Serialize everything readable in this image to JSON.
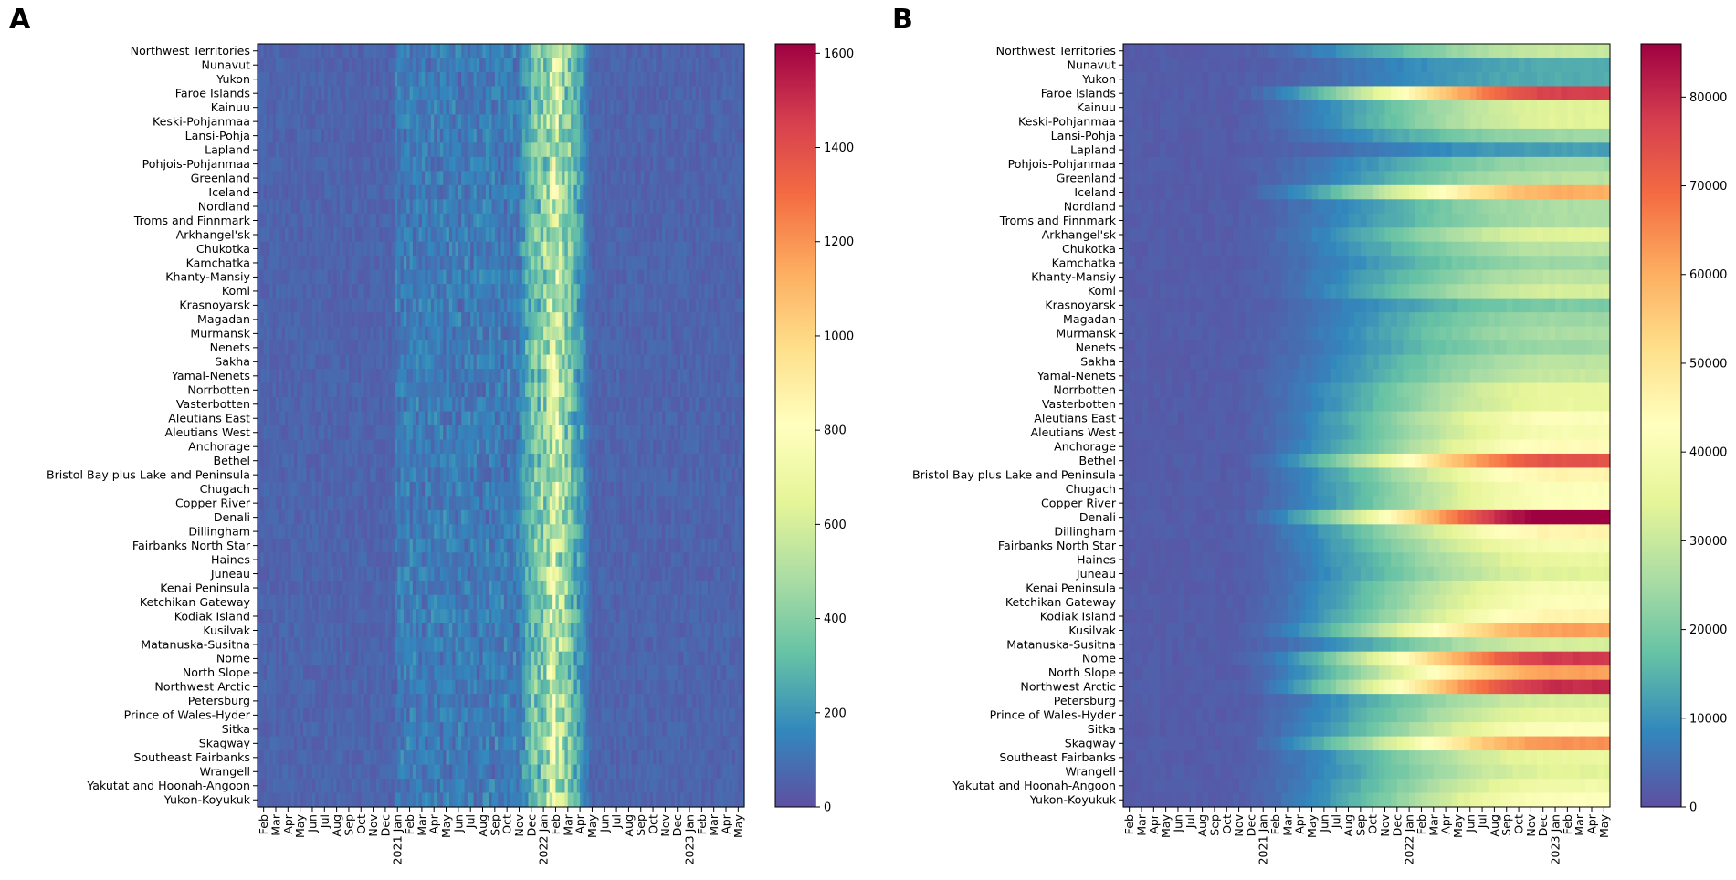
{
  "chart_data": [
    {
      "type": "heatmap",
      "panel_label": "A",
      "title": "",
      "xlabel": "",
      "ylabel": "",
      "rows": [
        "Northwest Territories",
        "Nunavut",
        "Yukon",
        "Faroe Islands",
        "Kainuu",
        "Keski-Pohjanmaa",
        "Lansi-Pohja",
        "Lapland",
        "Pohjois-Pohjanmaa",
        "Greenland",
        "Iceland",
        "Nordland",
        "Troms and Finnmark",
        "Arkhangel'sk",
        "Chukotka",
        "Kamchatka",
        "Khanty-Mansiy",
        "Komi",
        "Krasnoyarsk",
        "Magadan",
        "Murmansk",
        "Nenets",
        "Sakha",
        "Yamal-Nenets",
        "Norrbotten",
        "Vasterbotten",
        "Aleutians East",
        "Aleutians West",
        "Anchorage",
        "Bethel",
        "Bristol Bay plus Lake and Peninsula",
        "Chugach",
        "Copper River",
        "Denali",
        "Dillingham",
        "Fairbanks North Star",
        "Haines",
        "Juneau",
        "Kenai Peninsula",
        "Ketchikan Gateway",
        "Kodiak Island",
        "Kusilvak",
        "Matanuska-Susitna",
        "Nome",
        "North Slope",
        "Northwest Arctic",
        "Petersburg",
        "Prince of Wales-Hyder",
        "Sitka",
        "Skagway",
        "Southeast Fairbanks",
        "Wrangell",
        "Yakutat and Hoonah-Angoon",
        "Yukon-Koyukuk"
      ],
      "x_tick_labels": [
        "Feb",
        "Mar",
        "Apr",
        "May",
        "Jun",
        "Jul",
        "Aug",
        "Sep",
        "Oct",
        "Nov",
        "Dec",
        "2021 Jan",
        "Feb",
        "Mar",
        "Apr",
        "May",
        "Jun",
        "Jul",
        "Aug",
        "Sep",
        "Oct",
        "Nov",
        "Dec",
        "2022 Jan",
        "Feb",
        "Mar",
        "Apr",
        "May",
        "Jun",
        "Jul",
        "Aug",
        "Sep",
        "Oct",
        "Nov",
        "Dec",
        "2023 Jan",
        "Feb",
        "Mar",
        "Apr",
        "May"
      ],
      "colorbar": {
        "min": 0,
        "max": 1620,
        "ticks": [
          0,
          200,
          400,
          600,
          800,
          1000,
          1200,
          1400,
          1600
        ]
      },
      "profile": "daily",
      "peak_month_index": 24
    },
    {
      "type": "heatmap",
      "panel_label": "B",
      "title": "",
      "xlabel": "",
      "ylabel": "",
      "rows": [
        "Northwest Territories",
        "Nunavut",
        "Yukon",
        "Faroe Islands",
        "Kainuu",
        "Keski-Pohjanmaa",
        "Lansi-Pohja",
        "Lapland",
        "Pohjois-Pohjanmaa",
        "Greenland",
        "Iceland",
        "Nordland",
        "Troms and Finnmark",
        "Arkhangel'sk",
        "Chukotka",
        "Kamchatka",
        "Khanty-Mansiy",
        "Komi",
        "Krasnoyarsk",
        "Magadan",
        "Murmansk",
        "Nenets",
        "Sakha",
        "Yamal-Nenets",
        "Norrbotten",
        "Vasterbotten",
        "Aleutians East",
        "Aleutians West",
        "Anchorage",
        "Bethel",
        "Bristol Bay plus Lake and Peninsula",
        "Chugach",
        "Copper River",
        "Denali",
        "Dillingham",
        "Fairbanks North Star",
        "Haines",
        "Juneau",
        "Kenai Peninsula",
        "Ketchikan Gateway",
        "Kodiak Island",
        "Kusilvak",
        "Matanuska-Susitna",
        "Nome",
        "North Slope",
        "Northwest Arctic",
        "Petersburg",
        "Prince of Wales-Hyder",
        "Sitka",
        "Skagway",
        "Southeast Fairbanks",
        "Wrangell",
        "Yakutat and Hoonah-Angoon",
        "Yukon-Koyukuk"
      ],
      "x_tick_labels": [
        "Feb",
        "Mar",
        "Apr",
        "May",
        "Jun",
        "Jul",
        "Aug",
        "Sep",
        "Oct",
        "Nov",
        "Dec",
        "2021 Jan",
        "Feb",
        "Mar",
        "Apr",
        "May",
        "Jun",
        "Jul",
        "Aug",
        "Sep",
        "Oct",
        "Nov",
        "Dec",
        "2022 Jan",
        "Feb",
        "Mar",
        "Apr",
        "May",
        "Jun",
        "Jul",
        "Aug",
        "Sep",
        "Oct",
        "Nov",
        "Dec",
        "2023 Jan",
        "Feb",
        "Mar",
        "Apr",
        "May"
      ],
      "colorbar": {
        "min": 0,
        "max": 86000,
        "ticks": [
          0,
          10000,
          20000,
          30000,
          40000,
          50000,
          60000,
          70000,
          80000
        ]
      },
      "profile": "cumulative",
      "final_values": [
        28000,
        12000,
        12000,
        75000,
        32000,
        32000,
        22000,
        10000,
        22000,
        26000,
        58000,
        24000,
        24000,
        32000,
        26000,
        22000,
        26000,
        30000,
        18000,
        22000,
        24000,
        22000,
        26000,
        28000,
        34000,
        34000,
        40000,
        38000,
        42000,
        72000,
        44000,
        40000,
        40000,
        86000,
        44000,
        38000,
        34000,
        32000,
        38000,
        40000,
        44000,
        60000,
        30000,
        76000,
        60000,
        78000,
        30000,
        34000,
        40000,
        62000,
        34000,
        32000,
        36000,
        40000
      ]
    }
  ]
}
